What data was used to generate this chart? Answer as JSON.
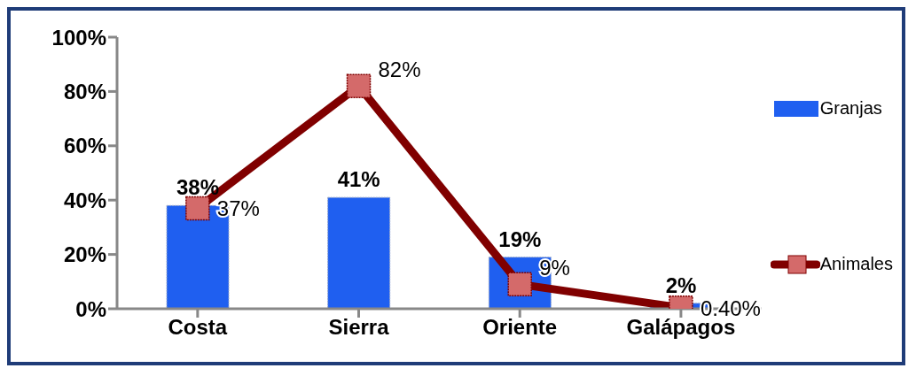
{
  "chart_data": {
    "type": "bar",
    "categories": [
      "Costa",
      "Sierra",
      "Oriente",
      "Galápagos"
    ],
    "series": [
      {
        "name": "Granjas",
        "color": "#1f5ff0",
        "values": [
          38,
          41,
          19,
          2
        ],
        "value_labels": [
          "38%",
          "41%",
          "19%",
          "2%"
        ]
      },
      {
        "name": "Animales",
        "type": "line",
        "color": "#800000",
        "values": [
          37,
          82,
          9,
          0.4
        ],
        "value_labels": [
          "37%",
          "82%",
          "9%",
          "0.40%"
        ],
        "marker": "square"
      }
    ],
    "ylim": [
      0,
      100
    ],
    "yticks": [
      {
        "value": 0,
        "label": "0%"
      },
      {
        "value": 20,
        "label": "20%"
      },
      {
        "value": 40,
        "label": "40%"
      },
      {
        "value": 60,
        "label": "60%"
      },
      {
        "value": 80,
        "label": "80%"
      },
      {
        "value": 100,
        "label": "100%"
      }
    ],
    "grid": false,
    "legend": "right"
  }
}
